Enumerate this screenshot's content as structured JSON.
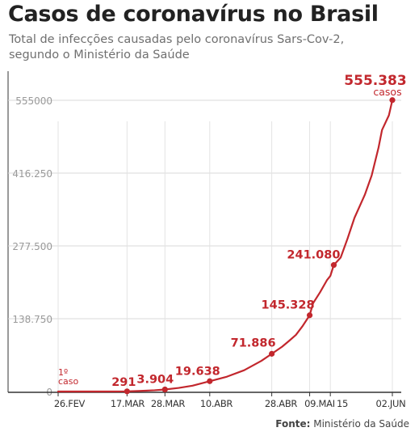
{
  "title": "Casos de coronavírus no Brasil",
  "subtitle_line1": "Total de infecções causadas pelo coronavírus Sars-Cov-2,",
  "subtitle_line2": "segundo o Ministério da Saúde",
  "source_label": "Fonte:",
  "source_name": "Ministério da Saúde",
  "colors": {
    "accent": "#c2272d",
    "grid": "#d8d8d8",
    "tick": "#9a9a9a",
    "text": "#222222"
  },
  "chart_data": {
    "type": "line",
    "ylim": [
      0,
      555000
    ],
    "yticks": [
      0,
      138750,
      277500,
      416250,
      555000
    ],
    "ytick_labels": [
      "0",
      "138.750",
      "277.500",
      "416.250",
      "555000"
    ],
    "grid": true,
    "xticks": [
      {
        "date": "2020-02-26",
        "label": "26.FEV"
      },
      {
        "date": "2020-03-17",
        "label": "17.MAR"
      },
      {
        "date": "2020-03-28",
        "label": "28.MAR"
      },
      {
        "date": "2020-04-10",
        "label": "10.ABR"
      },
      {
        "date": "2020-04-28",
        "label": "28.ABR"
      },
      {
        "date": "2020-05-09",
        "label": "09.MAI"
      },
      {
        "date": "2020-05-15",
        "label": "15"
      },
      {
        "date": "2020-06-02",
        "label": "02.JUN"
      }
    ],
    "series": [
      {
        "points": [
          [
            "2020-02-26",
            1
          ],
          [
            "2020-03-05",
            8
          ],
          [
            "2020-03-10",
            34
          ],
          [
            "2020-03-14",
            121
          ],
          [
            "2020-03-17",
            291
          ],
          [
            "2020-03-21",
            1128
          ],
          [
            "2020-03-25",
            2433
          ],
          [
            "2020-03-28",
            3904
          ],
          [
            "2020-04-01",
            6836
          ],
          [
            "2020-04-05",
            11130
          ],
          [
            "2020-04-10",
            19638
          ],
          [
            "2020-04-15",
            28320
          ],
          [
            "2020-04-20",
            40581
          ],
          [
            "2020-04-25",
            58509
          ],
          [
            "2020-04-28",
            71886
          ],
          [
            "2020-05-01",
            85380
          ],
          [
            "2020-05-03",
            96396
          ],
          [
            "2020-05-05",
            107780
          ],
          [
            "2020-05-07",
            125218
          ],
          [
            "2020-05-09",
            145328
          ],
          [
            "2020-05-10",
            168331
          ],
          [
            "2020-05-12",
            188974
          ],
          [
            "2020-05-14",
            212000
          ],
          [
            "2020-05-15",
            220291
          ],
          [
            "2020-05-16",
            241080
          ],
          [
            "2020-05-18",
            255368
          ],
          [
            "2020-05-20",
            291579
          ],
          [
            "2020-05-22",
            330890
          ],
          [
            "2020-05-25",
            374898
          ],
          [
            "2020-05-27",
            411821
          ],
          [
            "2020-05-29",
            465166
          ],
          [
            "2020-05-30",
            498440
          ],
          [
            "2020-06-01",
            526447
          ],
          [
            "2020-06-02",
            555383
          ]
        ]
      }
    ],
    "annotations": [
      {
        "date": "2020-02-26",
        "value": 1,
        "lines": [
          "1º",
          "caso"
        ],
        "marker": false
      },
      {
        "date": "2020-03-17",
        "value": 291,
        "lines": [
          "291"
        ],
        "marker": true
      },
      {
        "date": "2020-03-28",
        "value": 3904,
        "lines": [
          "3.904"
        ],
        "marker": true
      },
      {
        "date": "2020-04-10",
        "value": 19638,
        "lines": [
          "19.638"
        ],
        "marker": true
      },
      {
        "date": "2020-04-28",
        "value": 71886,
        "lines": [
          "71.886"
        ],
        "marker": true
      },
      {
        "date": "2020-05-09",
        "value": 145328,
        "lines": [
          "145.328"
        ],
        "marker": true
      },
      {
        "date": "2020-05-16",
        "value": 241080,
        "lines": [
          "241.080"
        ],
        "marker": true
      },
      {
        "date": "2020-06-02",
        "value": 555383,
        "lines": [
          "555.383",
          "casos"
        ],
        "marker": true
      }
    ]
  }
}
